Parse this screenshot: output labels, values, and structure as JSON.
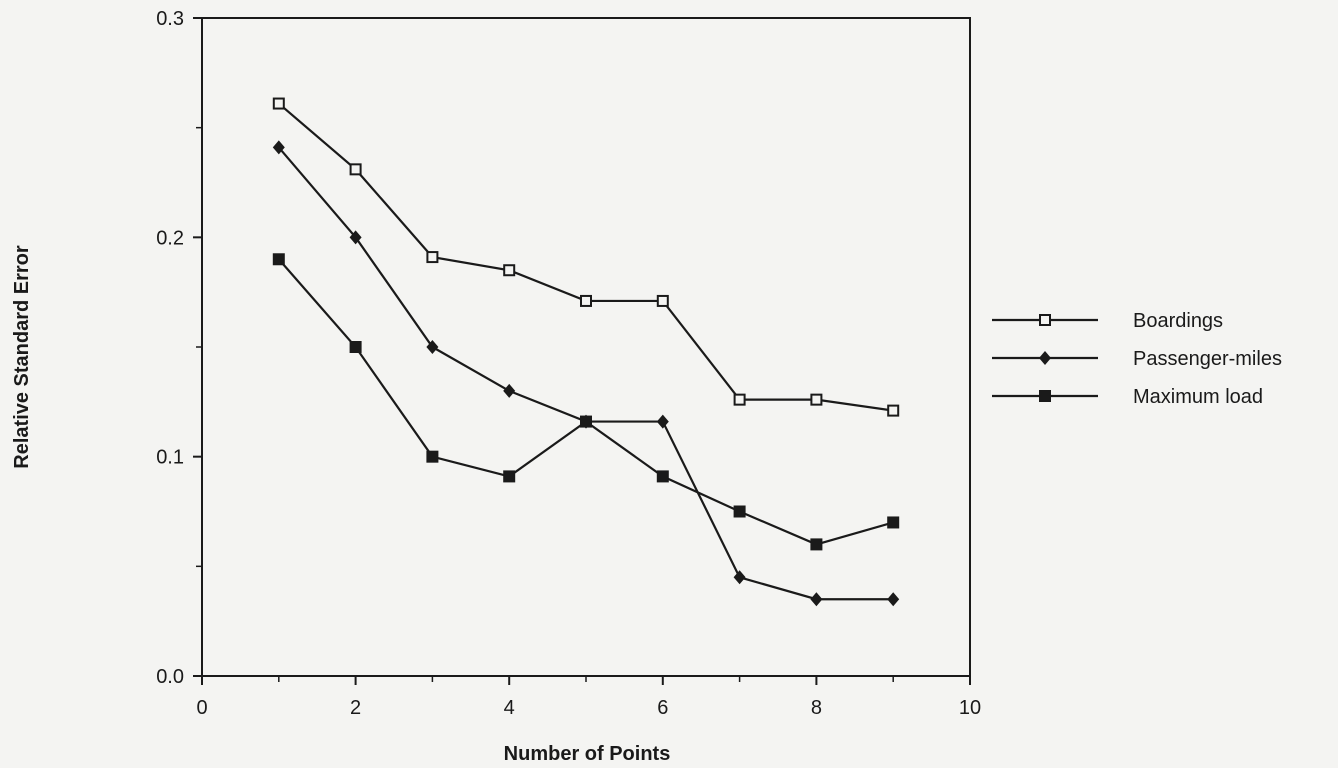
{
  "colors": {
    "background": "#f4f4f2",
    "ink": "#1a1a1a"
  },
  "chart_data": {
    "type": "line",
    "title": "",
    "xlabel": "Number of Points",
    "ylabel": "Relative Standard Error",
    "xlim": [
      0,
      10
    ],
    "ylim": [
      0.0,
      0.3
    ],
    "x_ticks": [
      0,
      2,
      4,
      6,
      8,
      10
    ],
    "x_tick_labels": [
      "0",
      "2",
      "4",
      "6",
      "8",
      "10"
    ],
    "y_ticks": [
      0.0,
      0.1,
      0.2,
      0.3
    ],
    "y_tick_labels": [
      "0.0",
      "0.1",
      "0.2",
      "0.3"
    ],
    "grid": false,
    "legend_position": "right",
    "x": [
      1,
      2,
      3,
      4,
      5,
      6,
      7,
      8,
      9
    ],
    "series": [
      {
        "name": "Boardings",
        "marker": "open-square",
        "values": [
          0.261,
          0.231,
          0.191,
          0.185,
          0.171,
          0.171,
          0.126,
          0.126,
          0.121
        ]
      },
      {
        "name": "Passenger-miles",
        "marker": "filled-diamond",
        "values": [
          0.241,
          0.2,
          0.15,
          0.13,
          0.116,
          0.116,
          0.045,
          0.035,
          0.035
        ]
      },
      {
        "name": "Maximum load",
        "marker": "filled-square",
        "values": [
          0.19,
          0.15,
          0.1,
          0.091,
          0.116,
          0.091,
          0.075,
          0.06,
          0.07
        ]
      }
    ]
  }
}
